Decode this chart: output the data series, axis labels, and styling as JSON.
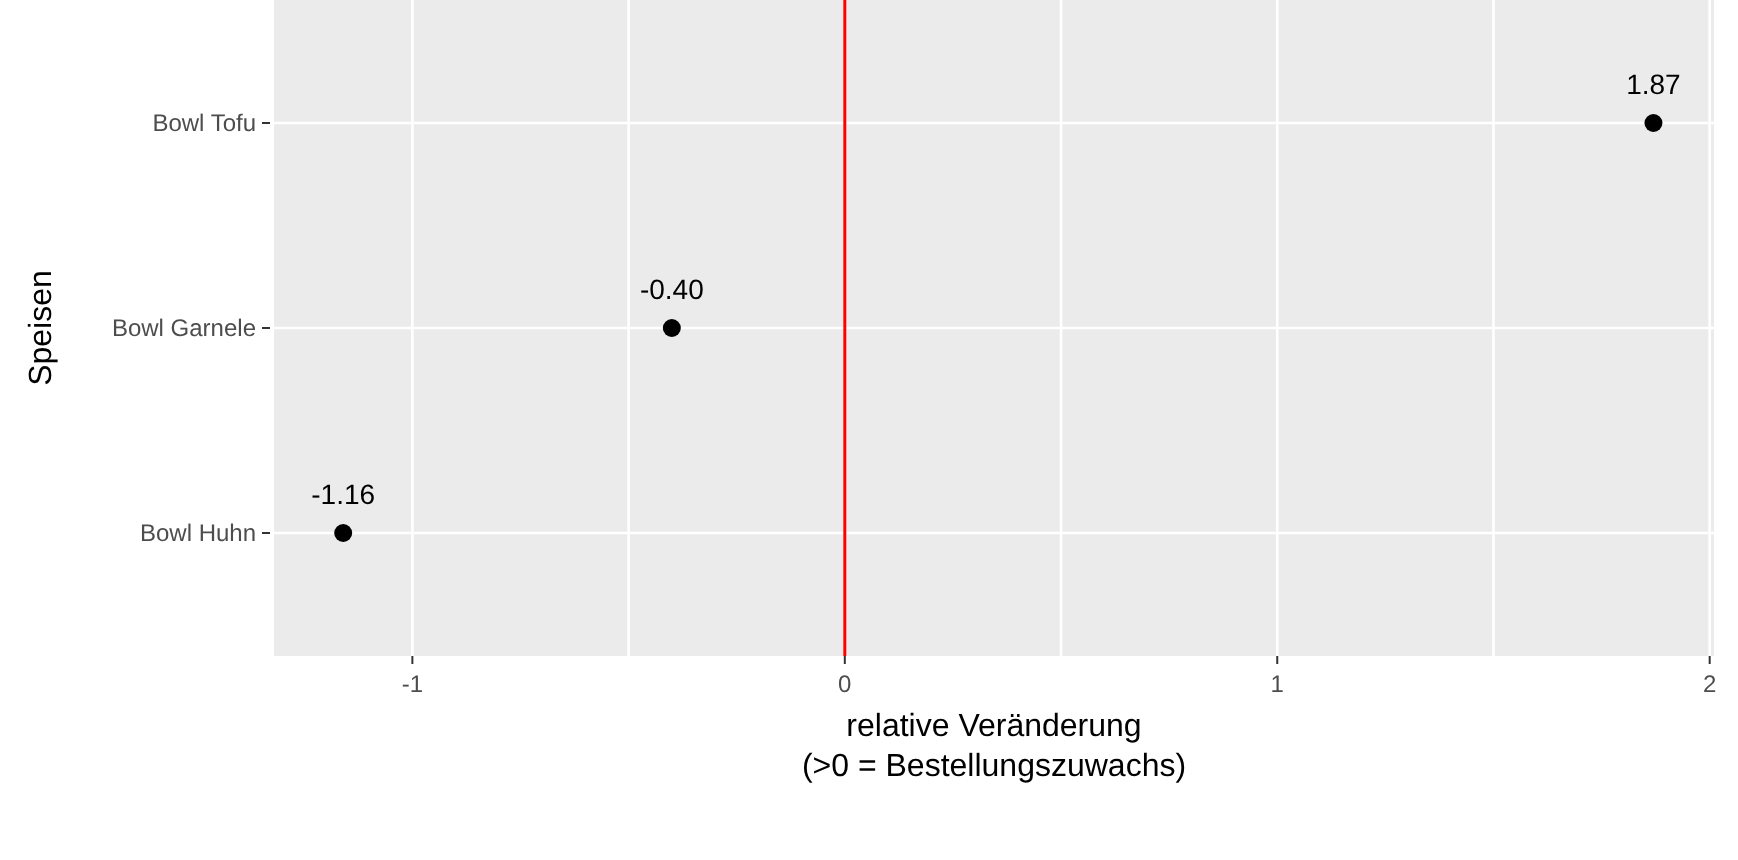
{
  "chart_data": {
    "type": "scatter",
    "orientation": "horizontal",
    "categories": [
      "Bowl Tofu",
      "Bowl Garnele",
      "Bowl Huhn"
    ],
    "values": [
      1.87,
      -0.4,
      -1.16
    ],
    "value_labels": [
      "1.87",
      "-0.40",
      "-1.16"
    ],
    "color": "#000000",
    "marker": "circle",
    "xlim": [
      -1.32,
      2.01
    ],
    "xticks": [
      -1,
      {
        "value": -0.5,
        "label": null
      },
      0,
      {
        "value": 0.5,
        "label": null
      },
      1,
      {
        "value": 1.5,
        "label": null
      },
      2
    ],
    "xlabel": "relative Veränderung\n(>0 = Bestellungszuwachs)",
    "ylabel": "Speisen",
    "grid": true,
    "ref_lines": [
      {
        "axis": "x",
        "value": 0,
        "color": "#ff0000"
      }
    ]
  }
}
